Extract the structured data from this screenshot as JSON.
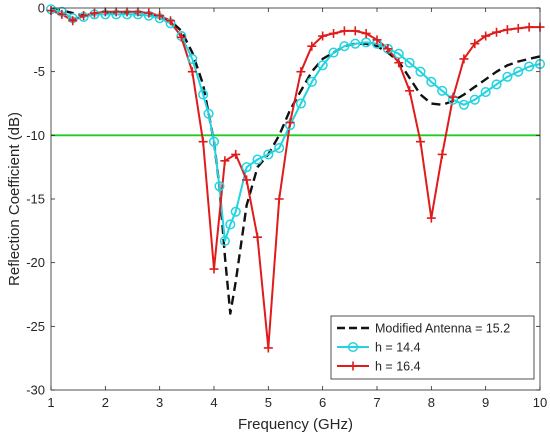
{
  "chart_data": {
    "type": "line",
    "xlabel": "Frequency   (GHz)",
    "ylabel": "Reflection Coefficient   (dB)",
    "xlim": [
      1,
      10
    ],
    "ylim": [
      -30,
      0
    ],
    "xticks": [
      1,
      2,
      3,
      4,
      5,
      6,
      7,
      8,
      9,
      10
    ],
    "yticks": [
      0,
      -5,
      -10,
      -15,
      -20,
      -25,
      -30
    ],
    "grid": false,
    "legend_position": "bottom-right",
    "reference_line": {
      "y": -10,
      "color": "#22cc22"
    },
    "series": [
      {
        "name": "Modified Antenna = 15.2",
        "color": "#111111",
        "style": "dashed",
        "marker": "none",
        "x": [
          1.0,
          1.2,
          1.4,
          1.6,
          1.8,
          2.0,
          2.2,
          2.4,
          2.6,
          2.8,
          3.0,
          3.2,
          3.4,
          3.6,
          3.8,
          4.0,
          4.1,
          4.2,
          4.3,
          4.4,
          4.6,
          4.8,
          5.0,
          5.2,
          5.4,
          5.6,
          5.8,
          6.0,
          6.2,
          6.4,
          6.6,
          6.8,
          7.0,
          7.2,
          7.4,
          7.6,
          7.8,
          8.0,
          8.2,
          8.4,
          8.6,
          8.8,
          9.0,
          9.2,
          9.4,
          9.6,
          9.8,
          10.0
        ],
        "values": [
          -0.1,
          -0.2,
          -0.4,
          -0.6,
          -0.5,
          -0.4,
          -0.4,
          -0.4,
          -0.5,
          -0.6,
          -0.7,
          -1.0,
          -1.8,
          -3.5,
          -6.0,
          -10.5,
          -14.0,
          -19.5,
          -24.0,
          -21.5,
          -15.5,
          -12.5,
          -11.5,
          -10.0,
          -8.0,
          -6.5,
          -5.0,
          -4.0,
          -3.5,
          -3.0,
          -2.8,
          -2.8,
          -3.0,
          -3.5,
          -4.2,
          -5.5,
          -6.8,
          -7.5,
          -7.6,
          -7.3,
          -6.8,
          -6.2,
          -5.6,
          -5.0,
          -4.5,
          -4.2,
          -4.0,
          -3.8
        ]
      },
      {
        "name": "h = 14.4",
        "color": "#22d3e0",
        "style": "solid",
        "marker": "circle",
        "x": [
          1.0,
          1.2,
          1.4,
          1.6,
          1.8,
          2.0,
          2.2,
          2.4,
          2.6,
          2.8,
          3.0,
          3.2,
          3.4,
          3.6,
          3.8,
          3.9,
          4.0,
          4.1,
          4.2,
          4.3,
          4.4,
          4.6,
          4.8,
          5.0,
          5.2,
          5.4,
          5.6,
          5.8,
          6.0,
          6.2,
          6.4,
          6.6,
          6.8,
          7.0,
          7.2,
          7.4,
          7.6,
          7.8,
          8.0,
          8.2,
          8.4,
          8.6,
          8.8,
          9.0,
          9.2,
          9.4,
          9.6,
          9.8,
          10.0
        ],
        "values": [
          -0.1,
          -0.3,
          -0.8,
          -0.7,
          -0.5,
          -0.5,
          -0.5,
          -0.5,
          -0.5,
          -0.6,
          -0.8,
          -1.2,
          -2.2,
          -4.0,
          -6.8,
          -8.3,
          -10.5,
          -14.0,
          -18.3,
          -17.0,
          -16.0,
          -12.5,
          -11.9,
          -11.5,
          -11.0,
          -9.2,
          -7.5,
          -5.8,
          -4.5,
          -3.5,
          -3.0,
          -2.8,
          -2.7,
          -2.8,
          -3.2,
          -3.6,
          -4.3,
          -5.0,
          -5.8,
          -6.5,
          -7.2,
          -7.6,
          -7.2,
          -6.6,
          -6.0,
          -5.4,
          -5.0,
          -4.6,
          -4.4
        ]
      },
      {
        "name": "h = 16.4",
        "color": "#e01b1b",
        "style": "solid",
        "marker": "plus",
        "x": [
          1.0,
          1.2,
          1.4,
          1.6,
          1.8,
          2.0,
          2.2,
          2.4,
          2.6,
          2.8,
          3.0,
          3.2,
          3.4,
          3.6,
          3.8,
          4.0,
          4.2,
          4.4,
          4.6,
          4.8,
          5.0,
          5.2,
          5.4,
          5.6,
          5.8,
          6.0,
          6.2,
          6.4,
          6.6,
          6.8,
          7.0,
          7.2,
          7.4,
          7.6,
          7.8,
          8.0,
          8.2,
          8.4,
          8.6,
          8.8,
          9.0,
          9.2,
          9.4,
          9.6,
          9.8,
          10.0
        ],
        "values": [
          -0.2,
          -0.5,
          -1.0,
          -0.6,
          -0.4,
          -0.3,
          -0.3,
          -0.3,
          -0.3,
          -0.4,
          -0.6,
          -1.0,
          -2.3,
          -5.0,
          -10.5,
          -20.5,
          -12.0,
          -11.5,
          -13.5,
          -18.0,
          -26.7,
          -15.0,
          -9.0,
          -5.0,
          -3.0,
          -2.2,
          -2.0,
          -1.8,
          -1.8,
          -2.0,
          -2.5,
          -3.2,
          -4.3,
          -6.5,
          -10.5,
          -16.5,
          -11.5,
          -7.0,
          -4.0,
          -2.8,
          -2.2,
          -1.9,
          -1.7,
          -1.6,
          -1.5,
          -1.5
        ]
      }
    ]
  }
}
